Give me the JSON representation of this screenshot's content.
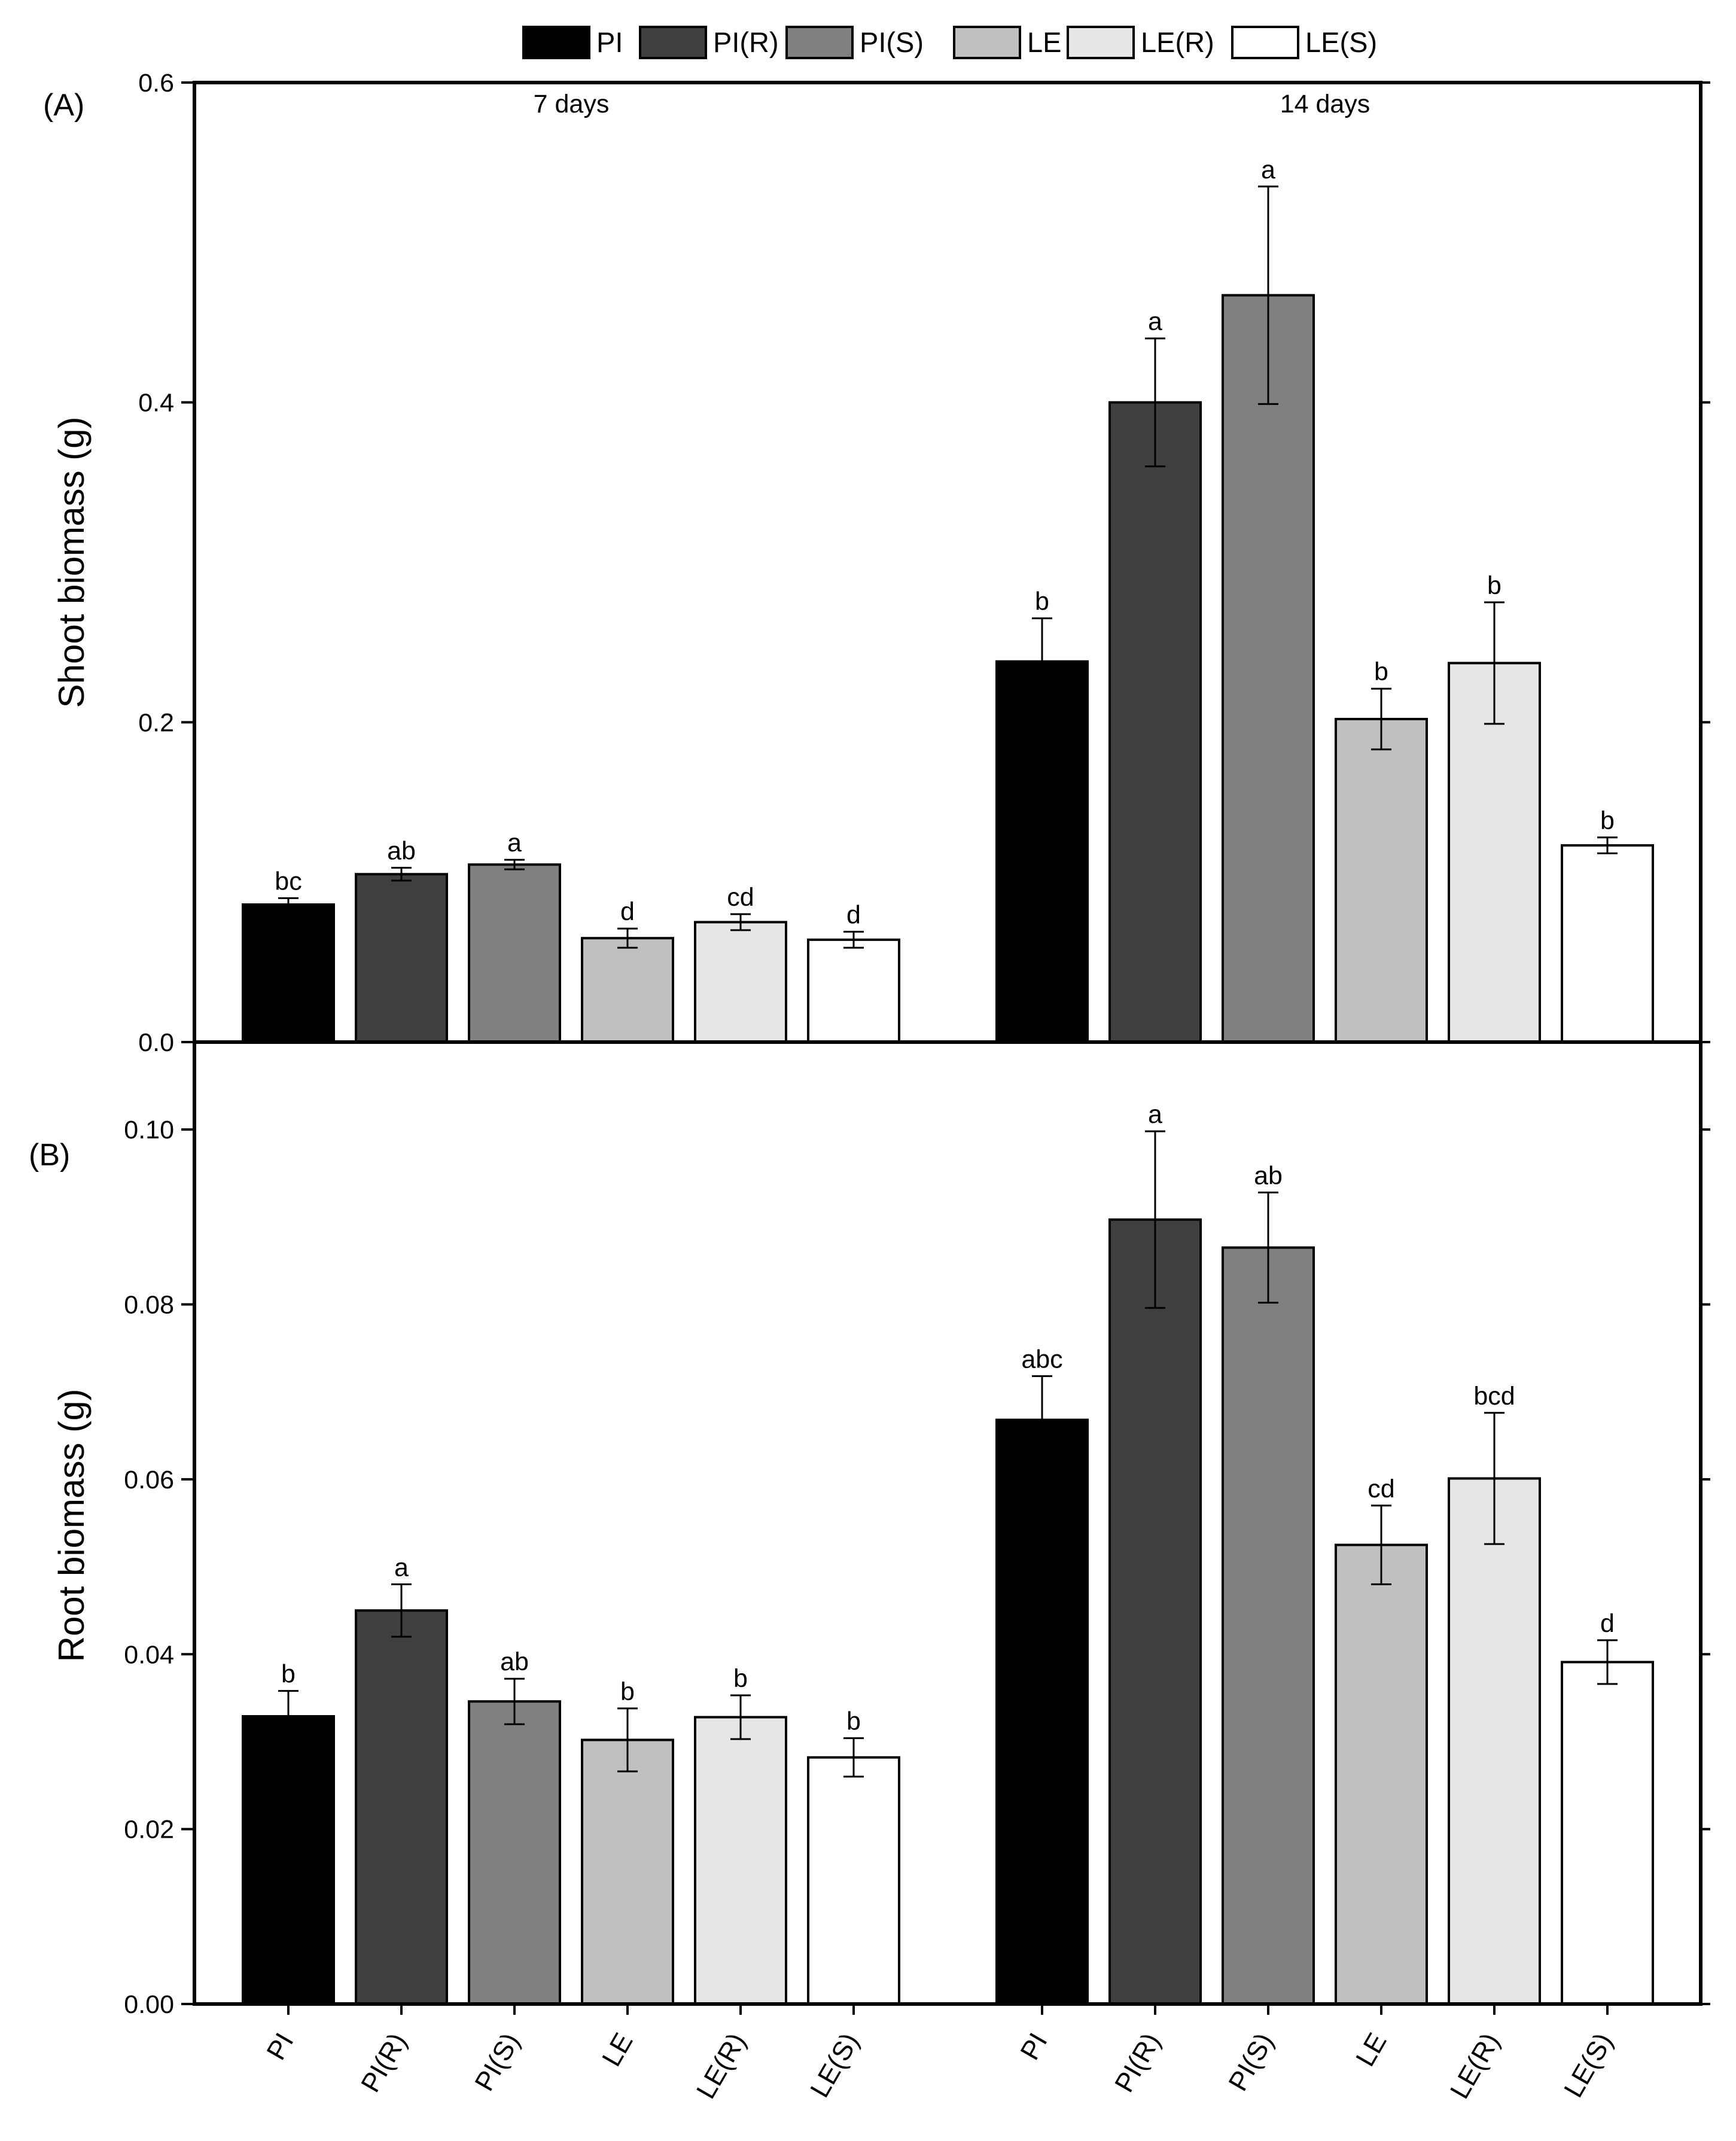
{
  "legend": {
    "entries": [
      {
        "label": "PI",
        "color": "#000000"
      },
      {
        "label": "PI(R)",
        "color": "#404040"
      },
      {
        "label": "PI(S)",
        "color": "#808080"
      },
      {
        "label": "LE",
        "color": "#c0c0c0"
      },
      {
        "label": "LE(R)",
        "color": "#e6e6e6"
      },
      {
        "label": "LE(S)",
        "color": "#ffffff"
      }
    ]
  },
  "chart_data": [
    {
      "type": "bar",
      "panel_label": "(A)",
      "ylabel": "Shoot biomass (g)",
      "ylim": [
        0,
        0.6
      ],
      "yticks": [
        0.0,
        0.2,
        0.4,
        0.6
      ],
      "ytick_labels": [
        "0.0",
        "0.2",
        "0.4",
        "0.6"
      ],
      "groups": [
        {
          "label": "7 days",
          "categories": [
            "PI",
            "PI(R)",
            "PI(S)",
            "LE",
            "LE(R)",
            "LE(S)"
          ],
          "values": [
            0.086,
            0.105,
            0.111,
            0.065,
            0.075,
            0.064
          ],
          "errors": [
            0.004,
            0.004,
            0.003,
            0.006,
            0.005,
            0.005
          ],
          "letters": [
            "bc",
            "ab",
            "a",
            "d",
            "cd",
            "d"
          ]
        },
        {
          "label": "14 days",
          "categories": [
            "PI",
            "PI(R)",
            "PI(S)",
            "LE",
            "LE(R)",
            "LE(S)"
          ],
          "values": [
            0.238,
            0.4,
            0.467,
            0.202,
            0.237,
            0.123
          ],
          "errors": [
            0.027,
            0.04,
            0.068,
            0.019,
            0.038,
            0.005
          ],
          "letters": [
            "b",
            "a",
            "a",
            "b",
            "b",
            "b"
          ]
        }
      ]
    },
    {
      "type": "bar",
      "panel_label": "(B)",
      "ylabel": "Root biomass (g)",
      "ylim": [
        0,
        0.11
      ],
      "yticks": [
        0.0,
        0.02,
        0.04,
        0.06,
        0.08,
        0.1
      ],
      "ytick_labels": [
        "0.00",
        "0.02",
        "0.04",
        "0.06",
        "0.08",
        "0.10"
      ],
      "groups": [
        {
          "label": "7 days",
          "categories": [
            "PI",
            "PI(R)",
            "PI(S)",
            "LE",
            "LE(R)",
            "LE(S)"
          ],
          "values": [
            0.0329,
            0.045,
            0.0346,
            0.0302,
            0.0328,
            0.0282
          ],
          "errors": [
            0.0029,
            0.003,
            0.0026,
            0.0036,
            0.0025,
            0.0022
          ],
          "letters": [
            "b",
            "a",
            "ab",
            "b",
            "b",
            "b"
          ]
        },
        {
          "label": "14 days",
          "categories": [
            "PI",
            "PI(R)",
            "PI(S)",
            "LE",
            "LE(R)",
            "LE(S)"
          ],
          "values": [
            0.0668,
            0.0897,
            0.0865,
            0.0525,
            0.0601,
            0.0391
          ],
          "errors": [
            0.005,
            0.0101,
            0.0063,
            0.0045,
            0.0075,
            0.0025
          ],
          "letters": [
            "abc",
            "a",
            "ab",
            "cd",
            "bcd",
            "d"
          ]
        }
      ]
    }
  ]
}
